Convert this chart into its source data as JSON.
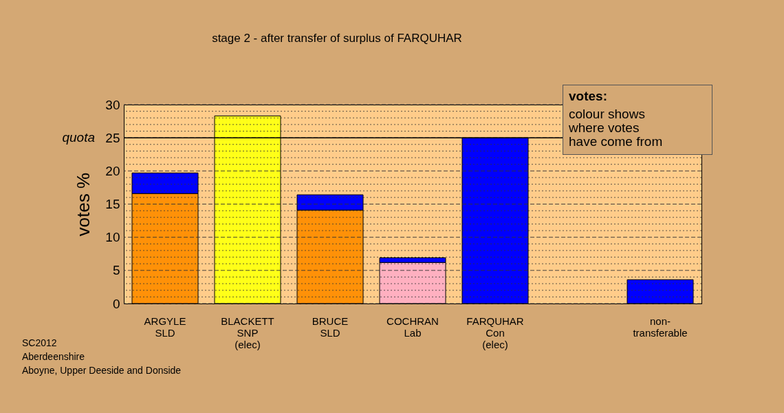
{
  "chart_data": {
    "type": "bar",
    "stacked": true,
    "title": "stage 2 - after transfer of surplus of FARQUHAR",
    "ylabel": "votes %",
    "categories": [
      "ARGYLE\nSLD",
      "BLACKETT\nSNP\n(elec)",
      "BRUCE\nSLD",
      "COCHRAN\nLab",
      "FARQUHAR\nCon\n(elec)",
      null,
      "non-\ntransferable"
    ],
    "series": [
      {
        "colors": [
          "#ff9108",
          "#ffff18",
          "#ff9108",
          "#ffb0c0",
          "#0000ff",
          null,
          null
        ],
        "values": [
          16.6,
          28.3,
          14.1,
          6.2,
          25.0,
          null,
          null
        ]
      },
      {
        "color": "#0000ff",
        "values": [
          3.1,
          null,
          2.3,
          0.7,
          null,
          null,
          3.6
        ]
      }
    ],
    "ylim": [
      0,
      30
    ],
    "yticks": [
      0,
      {
        "value": 1,
        "label": null
      },
      {
        "value": 2,
        "label": null
      },
      {
        "value": 3,
        "label": null
      },
      {
        "value": 4,
        "label": null
      },
      5,
      {
        "value": 6,
        "label": null
      },
      {
        "value": 7,
        "label": null
      },
      {
        "value": 8,
        "label": null
      },
      {
        "value": 9,
        "label": null
      },
      10,
      {
        "value": 11,
        "label": null
      },
      {
        "value": 12,
        "label": null
      },
      {
        "value": 13,
        "label": null
      },
      {
        "value": 14,
        "label": null
      },
      15,
      {
        "value": 16,
        "label": null
      },
      {
        "value": 17,
        "label": null
      },
      {
        "value": 18,
        "label": null
      },
      {
        "value": 19,
        "label": null
      },
      20,
      {
        "value": 21,
        "label": null
      },
      {
        "value": 22,
        "label": null
      },
      {
        "value": 23,
        "label": null
      },
      {
        "value": 24,
        "label": null
      },
      25,
      {
        "value": 26,
        "label": null
      },
      {
        "value": 27,
        "label": null
      },
      {
        "value": 28,
        "label": null
      },
      {
        "value": 29,
        "label": null
      },
      30
    ],
    "grid": "y",
    "ref_lines": [
      {
        "axis": "y",
        "value": 25,
        "label": "quota",
        "color": "#000000",
        "line_style": "solid"
      }
    ],
    "annotations": [
      "votes:",
      "colour shows\nwhere votes\nhave come from",
      "SC2012",
      "Aberdeenshire",
      "Aboyne, Upper Deeside and Donside"
    ]
  }
}
